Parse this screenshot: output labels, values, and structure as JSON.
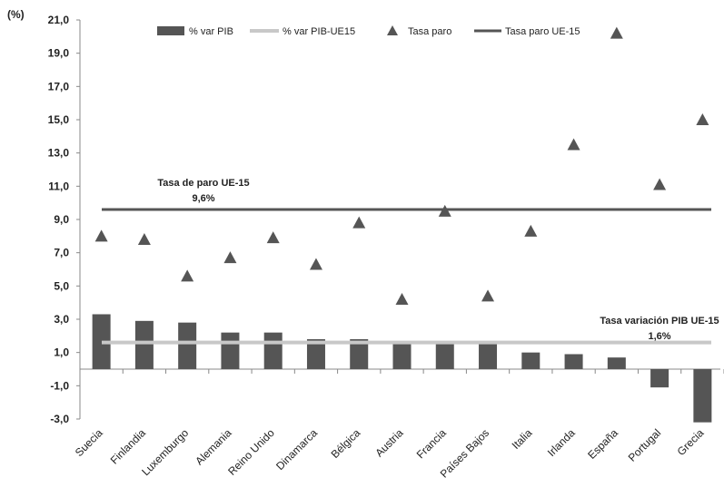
{
  "chart_data": {
    "type": "bar",
    "ylabel": "(%)",
    "ylim": [
      -3,
      21
    ],
    "yticks": [
      "-3,0",
      "-1,0",
      "1,0",
      "3,0",
      "5,0",
      "7,0",
      "9,0",
      "11,0",
      "13,0",
      "15,0",
      "17,0",
      "19,0",
      "21,0"
    ],
    "ytick_values": [
      -3,
      -1,
      1,
      3,
      5,
      7,
      9,
      11,
      13,
      15,
      17,
      19,
      21
    ],
    "grid": false,
    "legend_position": "top",
    "categories": [
      "Suecia",
      "Finlandia",
      "Luxemburgo",
      "Alemania",
      "Reino Unido",
      "Dinamarca",
      "Bélgica",
      "Austria",
      "Francia",
      "Países Bajos",
      "Italia",
      "Irlanda",
      "España",
      "Portugal",
      "Grecia"
    ],
    "series": [
      {
        "name": "% var PIB",
        "kind": "bar",
        "color": "#555555",
        "values": [
          3.3,
          2.9,
          2.8,
          2.2,
          2.2,
          1.8,
          1.8,
          1.5,
          1.5,
          1.5,
          1.0,
          0.9,
          0.7,
          -1.1,
          -3.2
        ]
      },
      {
        "name": "% var PIB-UE15",
        "kind": "hline",
        "color": "#c8c8c8",
        "value": 1.6
      },
      {
        "name": "Tasa paro",
        "kind": "marker",
        "color": "#555555",
        "values": [
          8.0,
          7.8,
          5.6,
          6.7,
          7.9,
          6.3,
          8.8,
          4.2,
          9.5,
          4.4,
          8.3,
          13.5,
          20.2,
          11.1,
          15.0
        ]
      },
      {
        "name": "Tasa paro UE-15",
        "kind": "hline",
        "color": "#555555",
        "value": 9.6
      }
    ],
    "annotations": [
      {
        "line1": "Tasa de paro UE-15",
        "line2": "9,6%"
      },
      {
        "line1": "Tasa variación  PIB UE-15",
        "line2": "1,6%"
      }
    ]
  }
}
